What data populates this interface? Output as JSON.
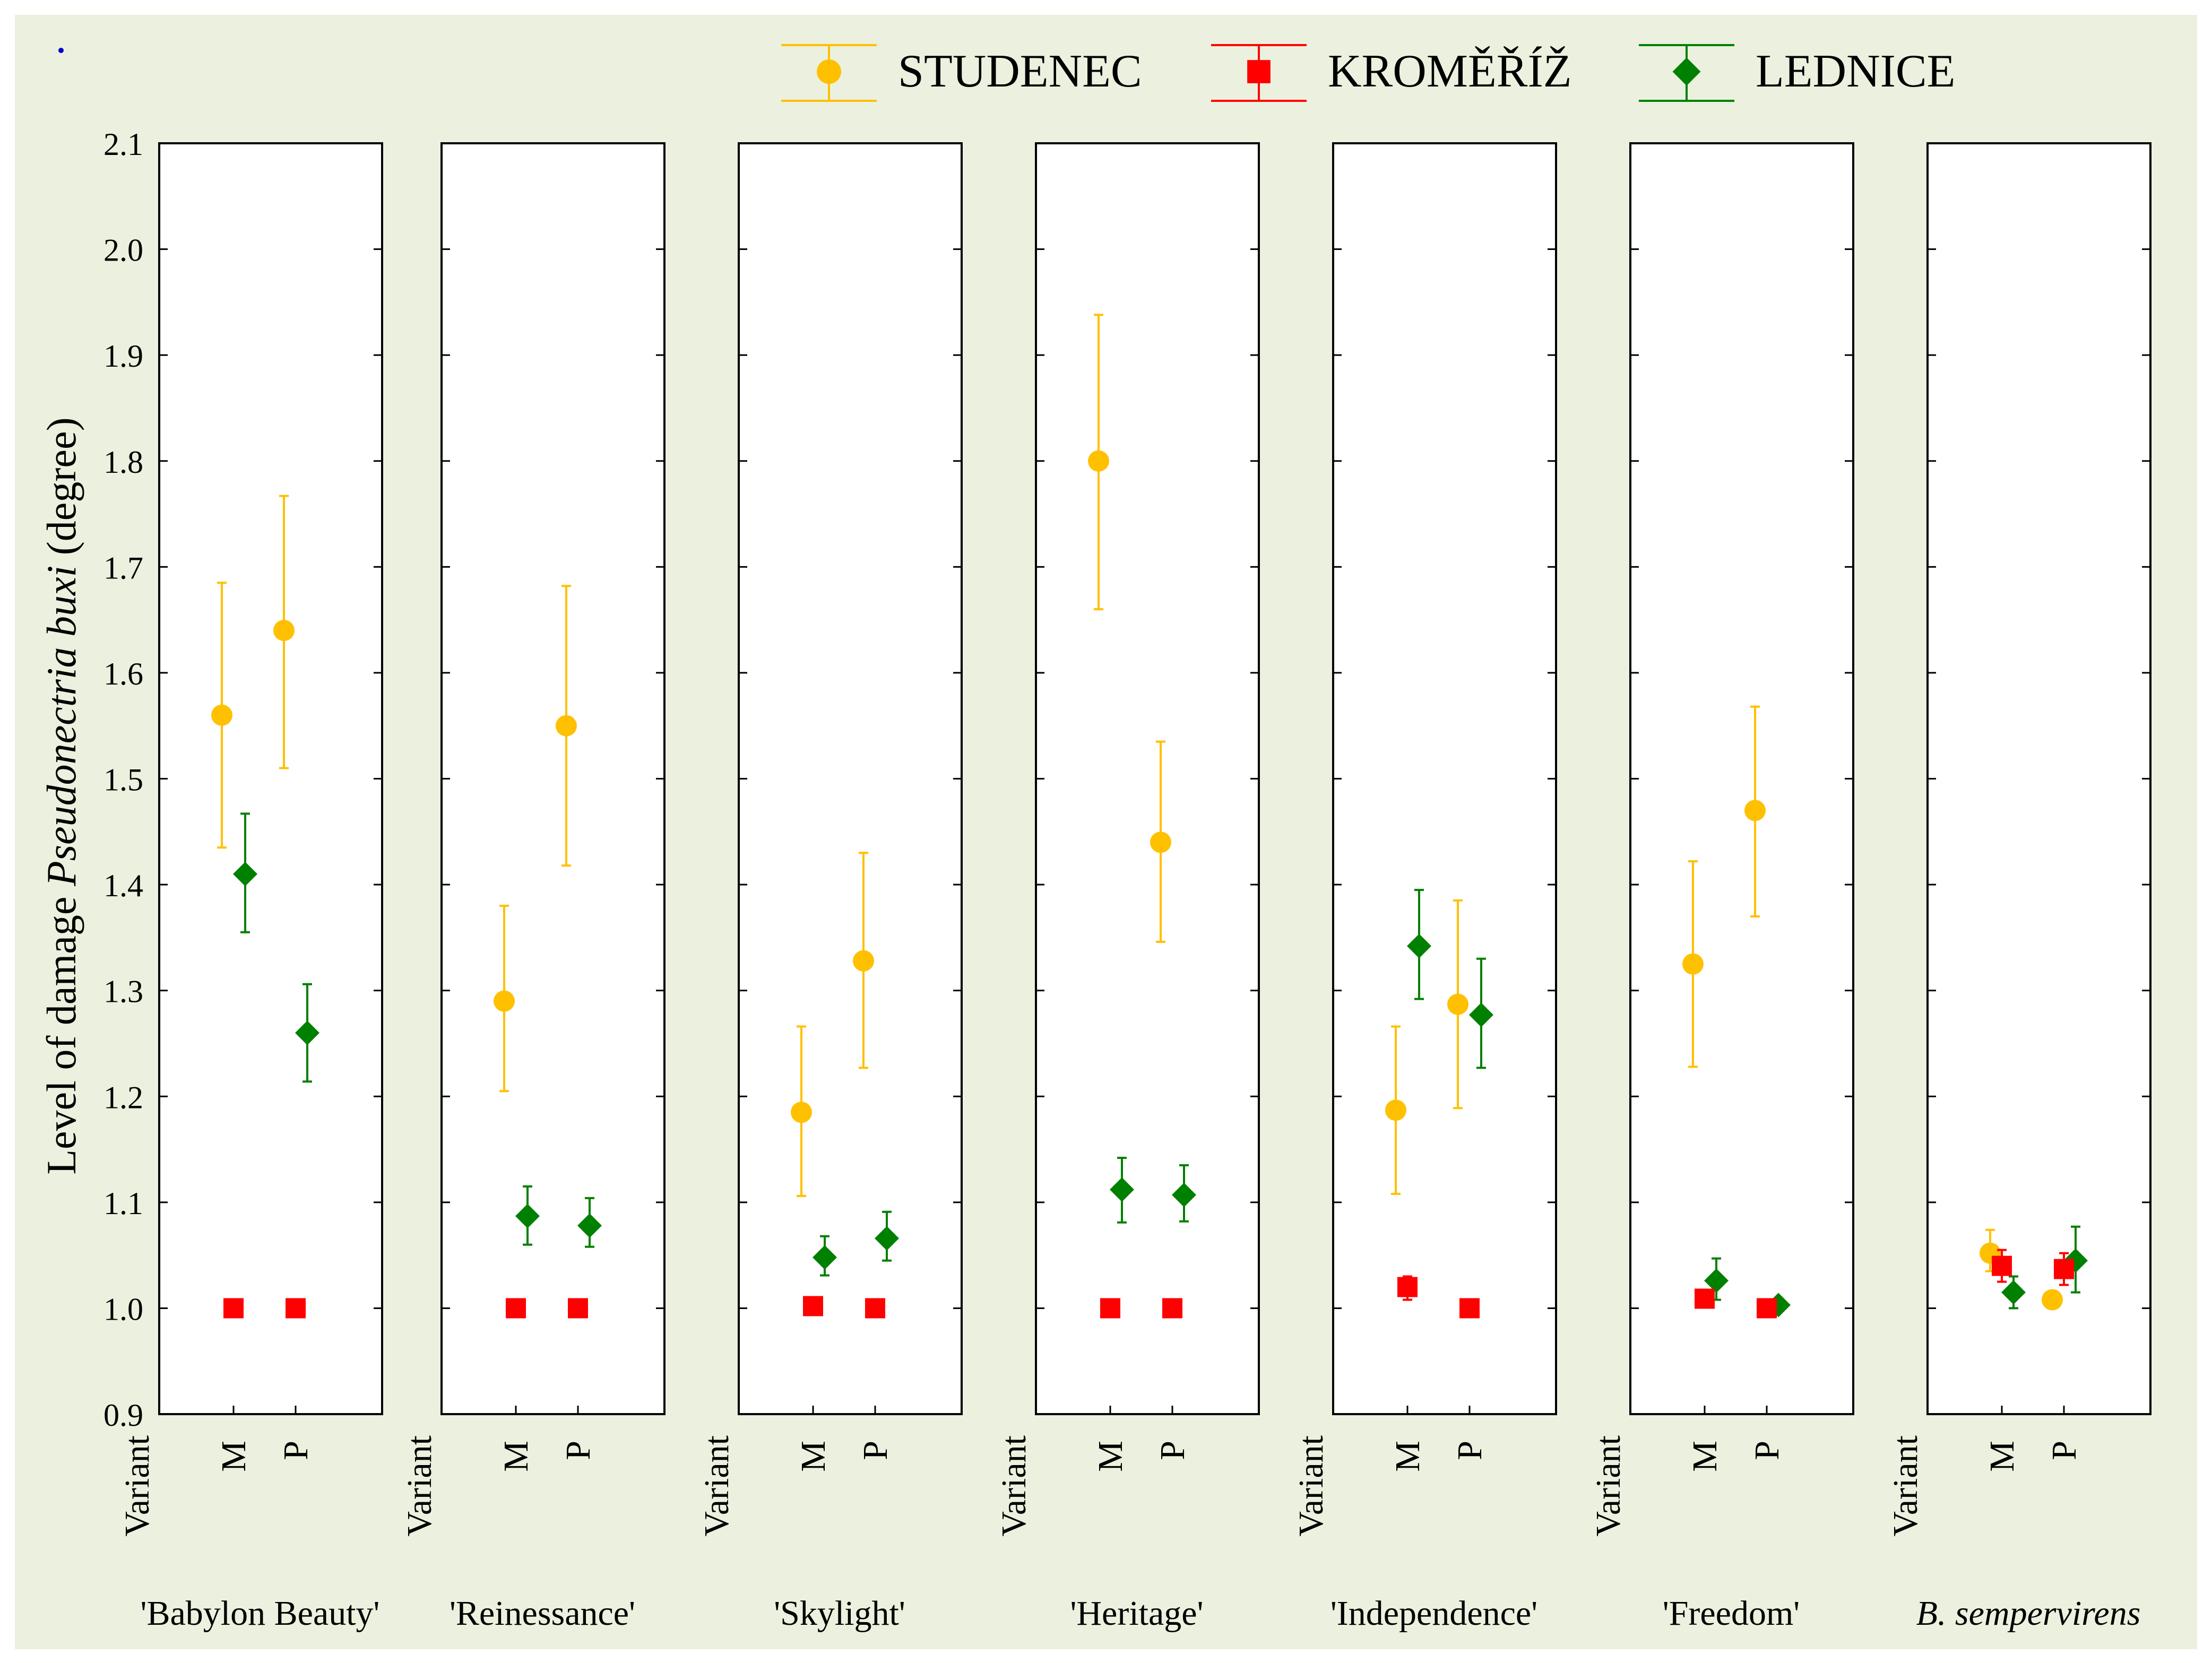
{
  "chart_data": {
    "type": "scatter",
    "subtype": "means-with-error-bars, small multiples",
    "ylabel_prefix": "Level of damage ",
    "ylabel_species": "Pseudonectria buxi",
    "ylabel_suffix": " (degree)",
    "ylim": [
      0.9,
      2.1
    ],
    "yticks": [
      "0.9",
      "1.0",
      "1.1",
      "1.2",
      "1.3",
      "1.4",
      "1.5",
      "1.6",
      "1.7",
      "1.8",
      "1.9",
      "2.0",
      "2.1"
    ],
    "xaxis_title": "Variant",
    "categories": [
      "M",
      "P"
    ],
    "legend_position": "top-right",
    "series": [
      {
        "name": "STUDENEC",
        "color": "#FFC000",
        "marker": "circle"
      },
      {
        "name": "KROMĚŘÍŽ",
        "color": "#FF0000",
        "marker": "square"
      },
      {
        "name": "LEDNICE",
        "color": "#008000",
        "marker": "diamond"
      }
    ],
    "panels": [
      {
        "name": "'Babylon Beauty'",
        "italic": false,
        "data": {
          "STUDENEC": [
            {
              "x": "M",
              "mean": 1.56,
              "lo": 1.435,
              "hi": 1.685
            },
            {
              "x": "P",
              "mean": 1.64,
              "lo": 1.51,
              "hi": 1.767
            }
          ],
          "KROMĚŘÍŽ": [
            {
              "x": "M",
              "mean": 1.0,
              "lo": 1.0,
              "hi": 1.0
            },
            {
              "x": "P",
              "mean": 1.0,
              "lo": 1.0,
              "hi": 1.0
            }
          ],
          "LEDNICE": [
            {
              "x": "M",
              "mean": 1.41,
              "lo": 1.355,
              "hi": 1.467
            },
            {
              "x": "P",
              "mean": 1.26,
              "lo": 1.214,
              "hi": 1.306
            }
          ]
        }
      },
      {
        "name": "'Reinessance'",
        "italic": false,
        "data": {
          "STUDENEC": [
            {
              "x": "M",
              "mean": 1.29,
              "lo": 1.205,
              "hi": 1.38
            },
            {
              "x": "P",
              "mean": 1.55,
              "lo": 1.418,
              "hi": 1.682
            }
          ],
          "KROMĚŘÍŽ": [
            {
              "x": "M",
              "mean": 1.0,
              "lo": 1.0,
              "hi": 1.0
            },
            {
              "x": "P",
              "mean": 1.0,
              "lo": 1.0,
              "hi": 1.0
            }
          ],
          "LEDNICE": [
            {
              "x": "M",
              "mean": 1.087,
              "lo": 1.06,
              "hi": 1.115
            },
            {
              "x": "P",
              "mean": 1.078,
              "lo": 1.058,
              "hi": 1.104
            }
          ]
        }
      },
      {
        "name": "'Skylight'",
        "italic": false,
        "data": {
          "STUDENEC": [
            {
              "x": "M",
              "mean": 1.185,
              "lo": 1.106,
              "hi": 1.266
            },
            {
              "x": "P",
              "mean": 1.328,
              "lo": 1.227,
              "hi": 1.43
            }
          ],
          "KROMĚŘÍŽ": [
            {
              "x": "M",
              "mean": 1.002,
              "lo": 1.0,
              "hi": 1.004
            },
            {
              "x": "P",
              "mean": 1.0,
              "lo": 1.0,
              "hi": 1.0
            }
          ],
          "LEDNICE": [
            {
              "x": "M",
              "mean": 1.048,
              "lo": 1.031,
              "hi": 1.068
            },
            {
              "x": "P",
              "mean": 1.066,
              "lo": 1.045,
              "hi": 1.091
            }
          ]
        }
      },
      {
        "name": "'Heritage'",
        "italic": false,
        "data": {
          "STUDENEC": [
            {
              "x": "M",
              "mean": 1.8,
              "lo": 1.66,
              "hi": 1.938
            },
            {
              "x": "P",
              "mean": 1.44,
              "lo": 1.346,
              "hi": 1.535
            }
          ],
          "KROMĚŘÍŽ": [
            {
              "x": "M",
              "mean": 1.0,
              "lo": 1.0,
              "hi": 1.0
            },
            {
              "x": "P",
              "mean": 1.0,
              "lo": 1.0,
              "hi": 1.0
            }
          ],
          "LEDNICE": [
            {
              "x": "M",
              "mean": 1.112,
              "lo": 1.081,
              "hi": 1.142
            },
            {
              "x": "P",
              "mean": 1.107,
              "lo": 1.082,
              "hi": 1.135
            }
          ]
        }
      },
      {
        "name": "'Independence'",
        "italic": false,
        "data": {
          "STUDENEC": [
            {
              "x": "M",
              "mean": 1.187,
              "lo": 1.108,
              "hi": 1.266
            },
            {
              "x": "P",
              "mean": 1.287,
              "lo": 1.189,
              "hi": 1.385
            }
          ],
          "KROMĚŘÍŽ": [
            {
              "x": "M",
              "mean": 1.02,
              "lo": 1.008,
              "hi": 1.03
            },
            {
              "x": "P",
              "mean": 1.0,
              "lo": 1.0,
              "hi": 1.0
            }
          ],
          "LEDNICE": [
            {
              "x": "M",
              "mean": 1.342,
              "lo": 1.292,
              "hi": 1.395
            },
            {
              "x": "P",
              "mean": 1.277,
              "lo": 1.227,
              "hi": 1.33
            }
          ]
        }
      },
      {
        "name": "'Freedom'",
        "italic": false,
        "data": {
          "STUDENEC": [
            {
              "x": "M",
              "mean": 1.325,
              "lo": 1.228,
              "hi": 1.422
            },
            {
              "x": "P",
              "mean": 1.47,
              "lo": 1.37,
              "hi": 1.568
            }
          ],
          "KROMĚŘÍŽ": [
            {
              "x": "M",
              "mean": 1.009,
              "lo": 1.003,
              "hi": 1.015
            },
            {
              "x": "P",
              "mean": 1.0,
              "lo": 1.0,
              "hi": 1.0
            }
          ],
          "LEDNICE": [
            {
              "x": "M",
              "mean": 1.026,
              "lo": 1.008,
              "hi": 1.047
            },
            {
              "x": "P",
              "mean": 1.003,
              "lo": 1.0,
              "hi": 1.006
            }
          ]
        }
      },
      {
        "name": "B. sempervirens",
        "italic": true,
        "data": {
          "STUDENEC": [
            {
              "x": "M",
              "mean": 1.052,
              "lo": 1.035,
              "hi": 1.074
            },
            {
              "x": "P",
              "mean": 1.008,
              "lo": 1.002,
              "hi": 1.014
            }
          ],
          "KROMĚŘÍŽ": [
            {
              "x": "M",
              "mean": 1.04,
              "lo": 1.025,
              "hi": 1.055
            },
            {
              "x": "P",
              "mean": 1.037,
              "lo": 1.022,
              "hi": 1.052
            }
          ],
          "LEDNICE": [
            {
              "x": "M",
              "mean": 1.015,
              "lo": 1.0,
              "hi": 1.03
            },
            {
              "x": "P",
              "mean": 1.045,
              "lo": 1.015,
              "hi": 1.077
            }
          ]
        }
      }
    ]
  }
}
